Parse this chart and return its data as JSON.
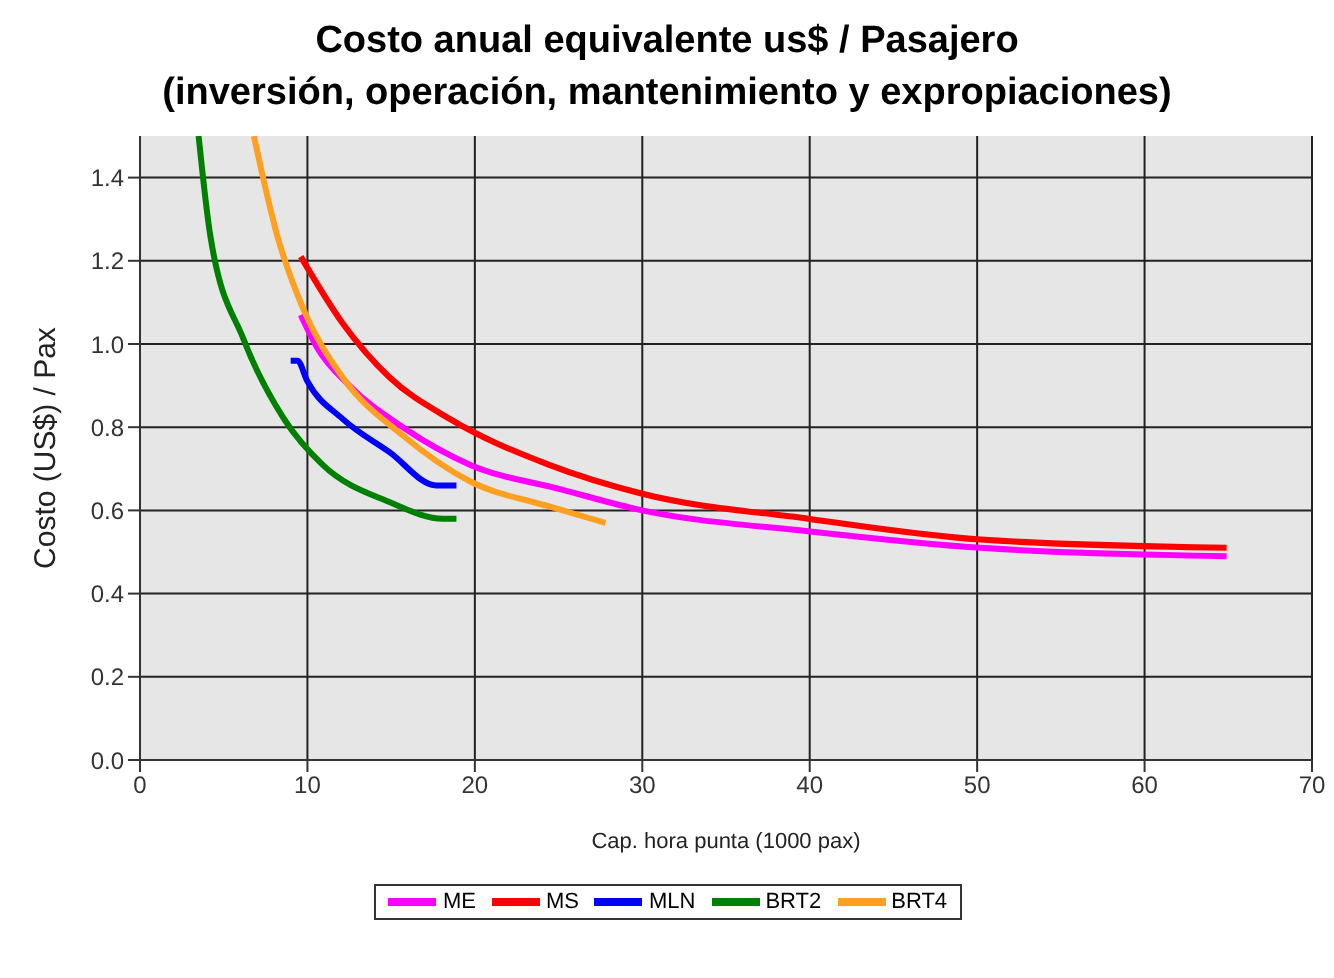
{
  "chart_data": {
    "type": "line",
    "title": "Costo anual equivalente us$ / Pasajero\n(inversión, operación, mantenimiento y expropiaciones)",
    "xlabel": "Cap. hora punta (1000 pax)",
    "ylabel": "Costo (US$) / Pax",
    "xlim": [
      0,
      70
    ],
    "ylim": [
      0,
      1.5
    ],
    "xticks": [
      0,
      10,
      20,
      30,
      40,
      50,
      60,
      70
    ],
    "yticks": [
      {
        "value": 0,
        "label": "0.0"
      },
      0.2,
      0.4,
      0.6,
      0.8,
      {
        "value": 1,
        "label": "1.0"
      },
      1.2,
      1.4
    ],
    "grid": true,
    "legend": "bottom",
    "marker": "none",
    "line_style": "solid",
    "series": [
      {
        "name": "ME",
        "color": "#ff00ff",
        "x": [
          9.6,
          10.6,
          12.5,
          15.7,
          19.7,
          25.2,
          30,
          39.9,
          50.2,
          64.9
        ],
        "values": [
          1.07,
          0.99,
          0.9,
          0.8,
          0.71,
          0.65,
          0.6,
          0.55,
          0.51,
          0.49
        ]
      },
      {
        "name": "MS",
        "color": "#ff0000",
        "x": [
          9.6,
          12.1,
          14.9,
          18.5,
          24.4,
          30,
          39.9,
          50.2,
          64.9
        ],
        "values": [
          1.21,
          1.05,
          0.92,
          0.82,
          0.71,
          0.64,
          0.58,
          0.53,
          0.51
        ]
      },
      {
        "name": "MLN",
        "color": "#0000ff",
        "x": [
          9.0,
          9.4,
          10,
          12.1,
          14.9,
          17.7,
          18.9
        ],
        "values": [
          0.96,
          0.96,
          0.91,
          0.82,
          0.74,
          0.66,
          0.66
        ]
      },
      {
        "name": "BRT2",
        "color": "#008000",
        "x": [
          3.5,
          4.2,
          6.2,
          8.6,
          10.9,
          14.9,
          18.1,
          18.9
        ],
        "values": [
          1.5,
          1.26,
          1.01,
          0.82,
          0.71,
          0.62,
          0.58,
          0.58
        ]
      },
      {
        "name": "BRT4",
        "color": "#ffa020",
        "x": [
          6.8,
          8.2,
          9.8,
          12.1,
          15.7,
          19.7,
          24.4,
          27.8
        ],
        "values": [
          1.5,
          1.26,
          1.08,
          0.92,
          0.78,
          0.67,
          0.61,
          0.57
        ]
      }
    ]
  }
}
